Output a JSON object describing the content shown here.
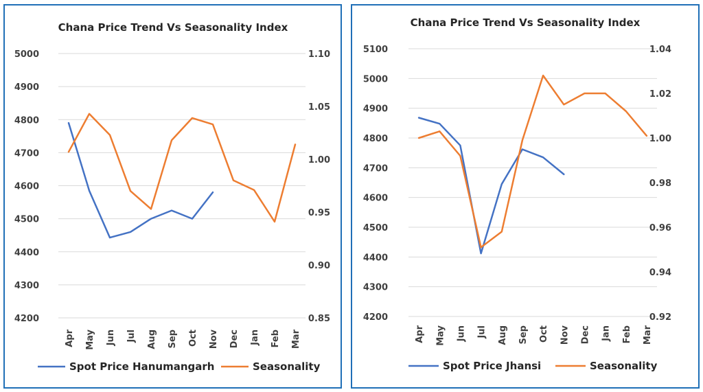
{
  "colors": {
    "price": "#4472c4",
    "seasonality": "#ed7d31",
    "frame": "#1f6fb7"
  },
  "chart_data": [
    {
      "type": "line",
      "title": "Chana Price Trend Vs Seasonality Index",
      "categories": [
        "Apr",
        "May",
        "Jun",
        "Jul",
        "Aug",
        "Sep",
        "Oct",
        "Nov",
        "Dec",
        "Jan",
        "Feb",
        "Mar"
      ],
      "y_left": {
        "min": 4200,
        "max": 5000,
        "step": 100,
        "ticks": [
          "4200",
          "4300",
          "4400",
          "4500",
          "4600",
          "4700",
          "4800",
          "4900",
          "5000"
        ]
      },
      "y_right": {
        "min": 0.85,
        "max": 1.1,
        "step": 0.05,
        "ticks": [
          "0.85",
          "0.90",
          "0.95",
          "1.00",
          "1.05",
          "1.10"
        ]
      },
      "grid": true,
      "legend_position": "bottom",
      "series": [
        {
          "name": "Spot Price Hanumangarh",
          "axis": "left",
          "color": "#4472c4",
          "values": [
            4790,
            4585,
            4443,
            4460,
            4500,
            4525,
            4500,
            4580,
            null,
            null,
            null,
            null
          ]
        },
        {
          "name": "Seasonality",
          "axis": "right",
          "color": "#ed7d31",
          "values": [
            1.007,
            1.043,
            1.023,
            0.97,
            0.953,
            1.018,
            1.039,
            1.033,
            0.98,
            0.971,
            0.941,
            1.014
          ]
        }
      ]
    },
    {
      "type": "line",
      "title": "Chana Price Trend Vs Seasonality Index",
      "categories": [
        "Apr",
        "May",
        "Jun",
        "Jul",
        "Aug",
        "Sep",
        "Oct",
        "Nov",
        "Dec",
        "Jan",
        "Feb",
        "Mar"
      ],
      "y_left": {
        "min": 4200,
        "max": 5100,
        "step": 100,
        "ticks": [
          "4200",
          "4300",
          "4400",
          "4500",
          "4600",
          "4700",
          "4800",
          "4900",
          "5000",
          "5100"
        ]
      },
      "y_right": {
        "min": 0.92,
        "max": 1.04,
        "step": 0.02,
        "ticks": [
          "0.92",
          "0.94",
          "0.96",
          "0.98",
          "1.00",
          "1.02",
          "1.04"
        ]
      },
      "grid": true,
      "legend_position": "bottom",
      "series": [
        {
          "name": "Spot Price Jhansi",
          "axis": "left",
          "color": "#4472c4",
          "values": [
            4868,
            4848,
            4775,
            4412,
            4645,
            4762,
            4735,
            4678,
            null,
            null,
            null,
            null
          ]
        },
        {
          "name": "Seasonality",
          "axis": "right",
          "color": "#ed7d31",
          "values": [
            1.0,
            1.003,
            0.992,
            0.951,
            0.958,
            0.999,
            1.028,
            1.015,
            1.02,
            1.02,
            1.012,
            1.001
          ]
        }
      ]
    }
  ]
}
